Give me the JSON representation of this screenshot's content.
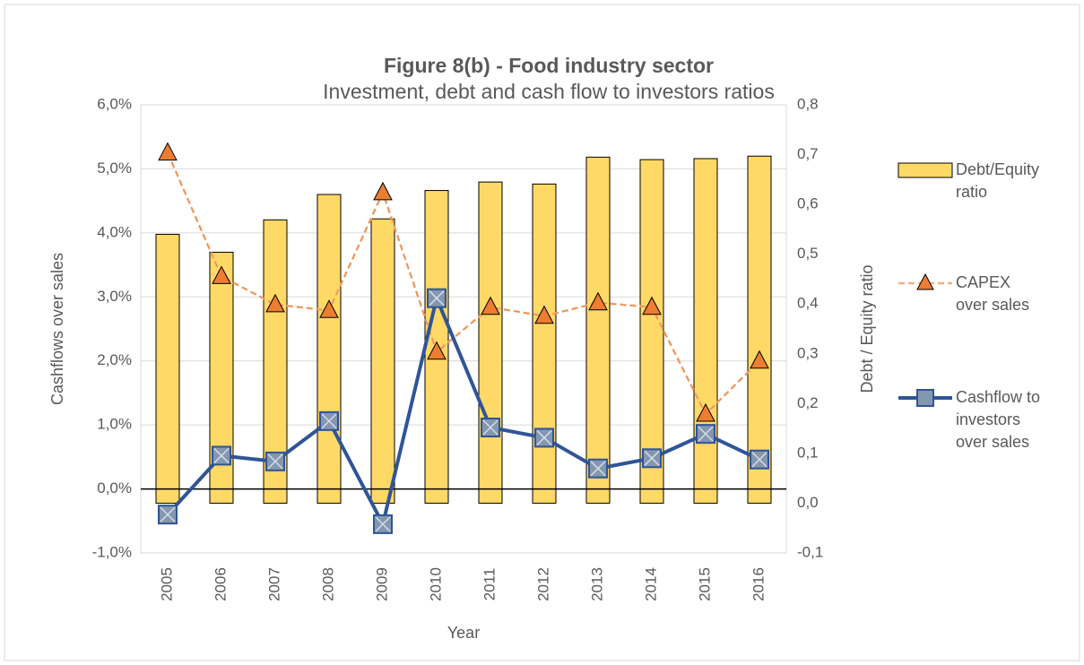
{
  "chart_data": {
    "type": "combo",
    "title": "Figure 8(b) - Food industry  sector",
    "subtitle": "Investment, debt and cash flow to investors ratios",
    "x_label": "Year",
    "y_label": "Cashflows over sales",
    "y2_label": "Debt / Equity ratio",
    "categories": [
      "2005",
      "2006",
      "2007",
      "2008",
      "2009",
      "2010",
      "2011",
      "2012",
      "2013",
      "2014",
      "2015",
      "2016"
    ],
    "series": [
      {
        "name": "Debt/Equity ratio",
        "type": "bar",
        "axis": "y2",
        "color": "#ffd966",
        "values": [
          0.54,
          0.504,
          0.569,
          0.62,
          0.571,
          0.628,
          0.645,
          0.641,
          0.695,
          0.69,
          0.692,
          0.697
        ]
      },
      {
        "name": "CAPEX over sales",
        "type": "line",
        "color": "#ed7d31",
        "dashed": true,
        "marker": "triangle",
        "values": [
          5.25,
          3.32,
          2.88,
          2.79,
          4.63,
          2.14,
          2.84,
          2.7,
          2.91,
          2.84,
          1.17,
          2.0
        ]
      },
      {
        "name": "Cashflow to investors over sales",
        "type": "line",
        "color": "#2f5597",
        "dashed": false,
        "marker": "square",
        "values": [
          -0.4,
          0.52,
          0.43,
          1.06,
          -0.55,
          2.98,
          0.96,
          0.8,
          0.32,
          0.48,
          0.86,
          0.46
        ]
      }
    ],
    "ylim": [
      -1,
      6
    ],
    "yticks": [
      {
        "value": -1,
        "label": "-1,0%"
      },
      {
        "value": 0,
        "label": "0,0%"
      },
      {
        "value": 1,
        "label": "1,0%"
      },
      {
        "value": 2,
        "label": "2,0%"
      },
      {
        "value": 3,
        "label": "3,0%"
      },
      {
        "value": 4,
        "label": "4,0%"
      },
      {
        "value": 5,
        "label": "5,0%"
      },
      {
        "value": 6,
        "label": "6,0%"
      }
    ],
    "y2lim": [
      -0.1,
      0.8
    ],
    "y2ticks": [
      {
        "value": -0.1,
        "label": "-0,1"
      },
      {
        "value": 0,
        "label": "0,0"
      },
      {
        "value": 0.1,
        "label": "0,1"
      },
      {
        "value": 0.2,
        "label": "0,2"
      },
      {
        "value": 0.3,
        "label": "0,3"
      },
      {
        "value": 0.4,
        "label": "0,4"
      },
      {
        "value": 0.5,
        "label": "0,5"
      },
      {
        "value": 0.6,
        "label": "0,6"
      },
      {
        "value": 0.7,
        "label": "0,7"
      },
      {
        "value": 0.8,
        "label": "0,8"
      }
    ],
    "grid": true,
    "legend": "right"
  }
}
